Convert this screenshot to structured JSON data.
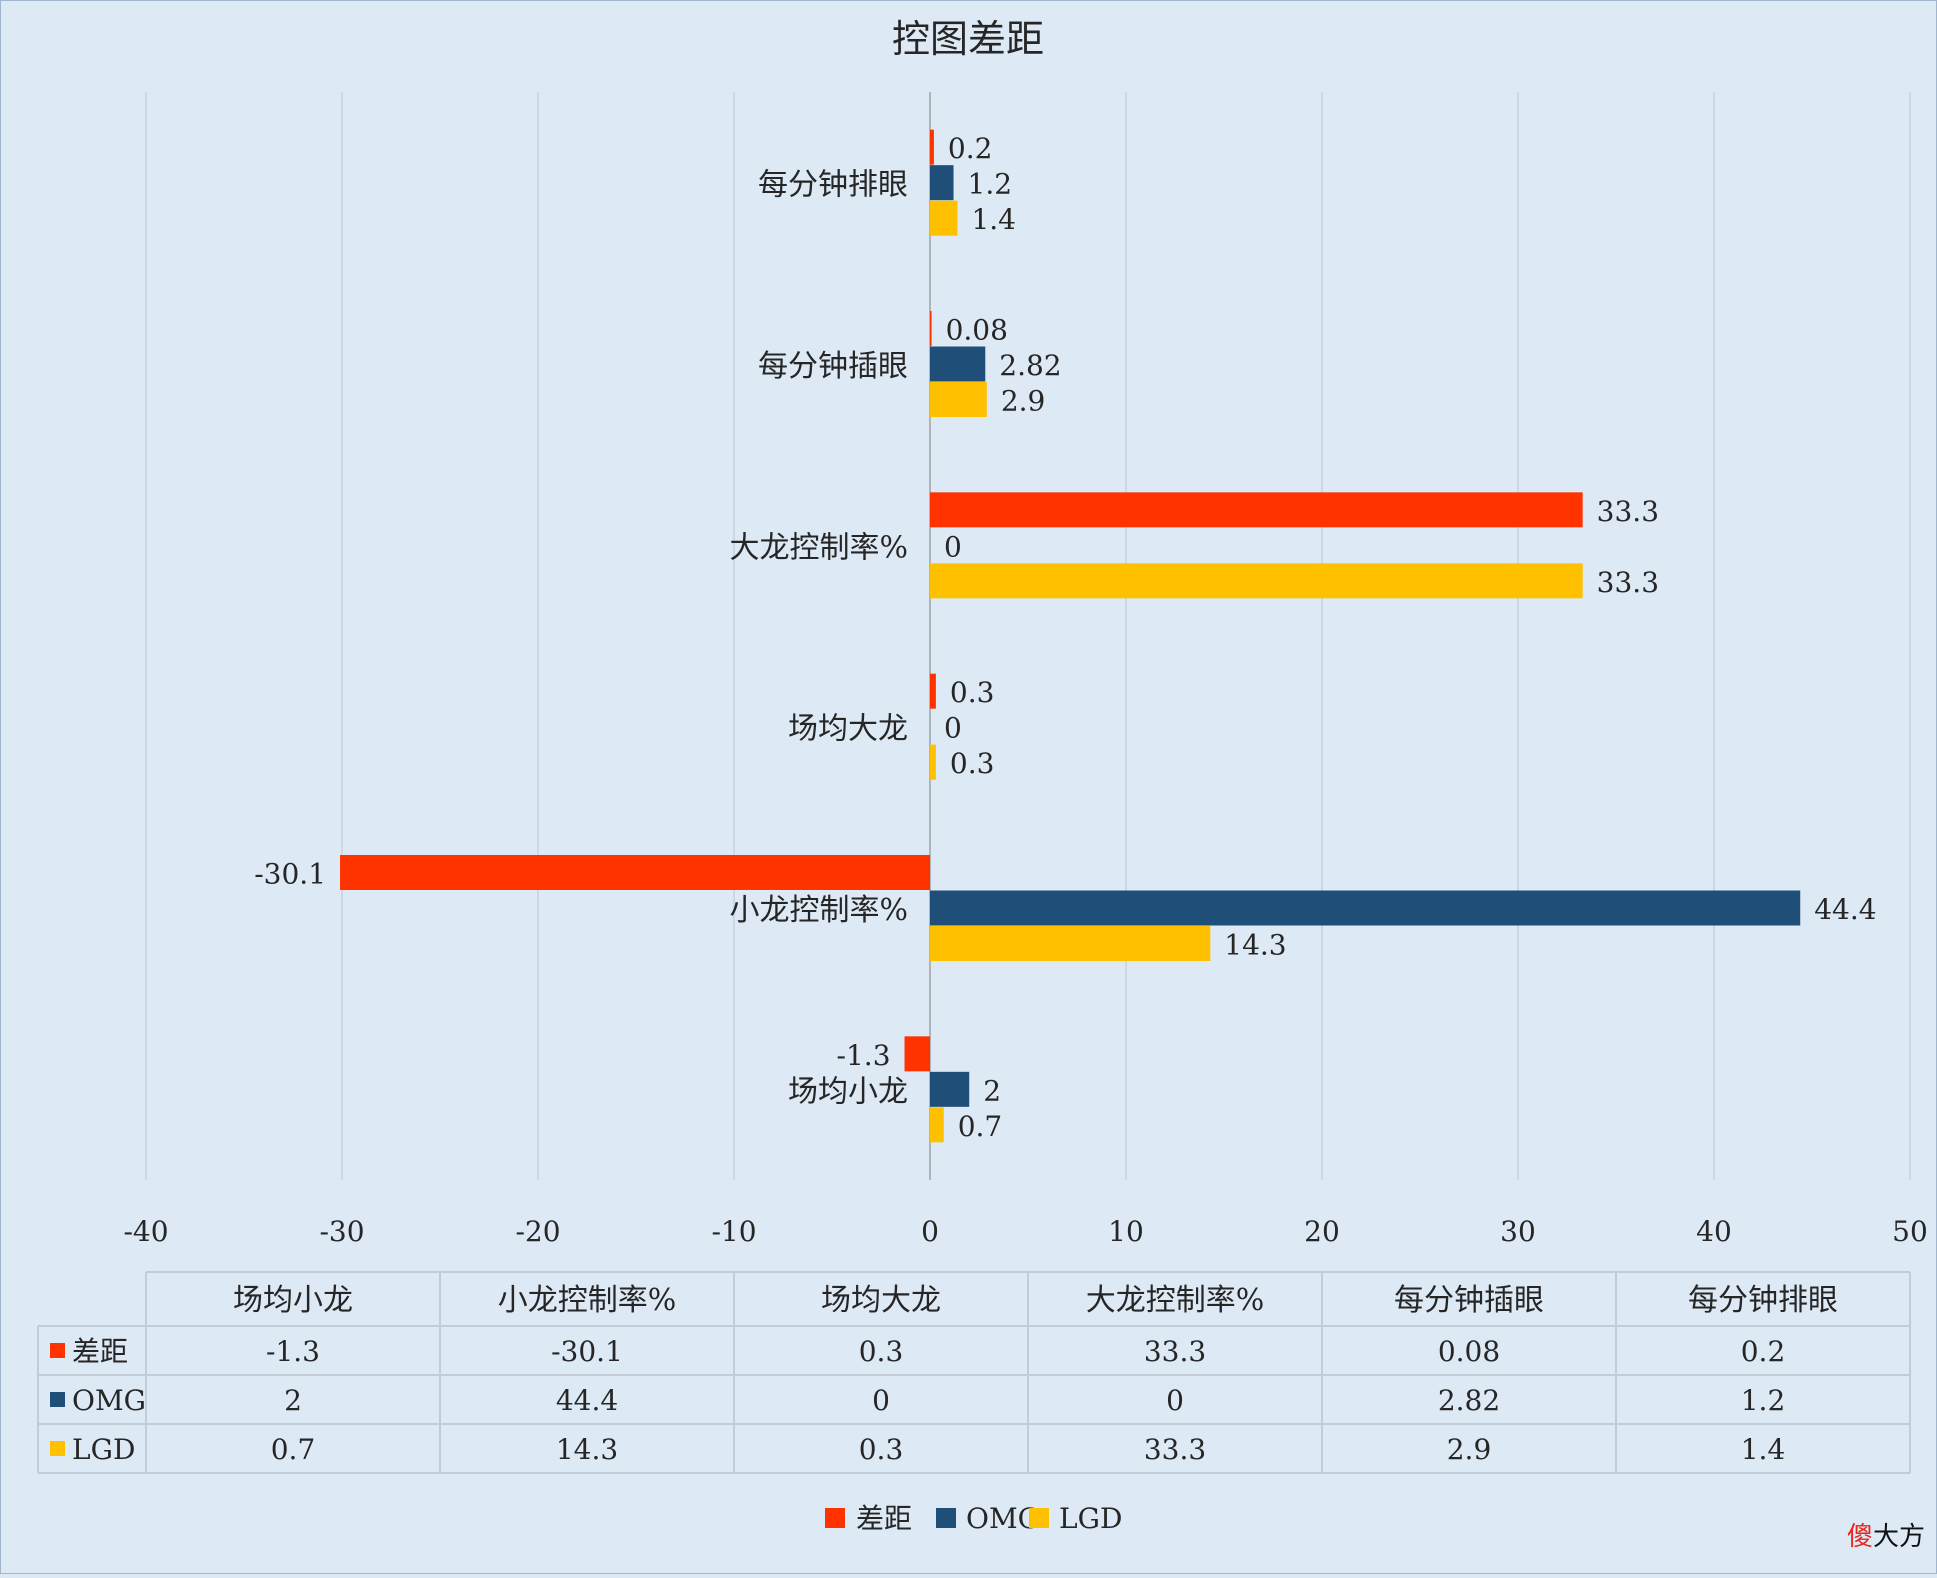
{
  "chart_data": {
    "type": "bar",
    "orientation": "horizontal",
    "title": "控图差距",
    "categories": [
      "场均小龙",
      "小龙控制率%",
      "场均大龙",
      "大龙控制率%",
      "每分钟插眼",
      "每分钟排眼"
    ],
    "series": [
      {
        "name": "差距",
        "color": "#ff3300",
        "values": [
          -1.3,
          -30.1,
          0.3,
          33.3,
          0.08,
          0.2
        ]
      },
      {
        "name": "OMG",
        "color": "#1f4e79",
        "values": [
          2,
          44.4,
          0,
          0,
          2.82,
          1.2
        ]
      },
      {
        "name": "LGD",
        "color": "#ffc000",
        "values": [
          0.7,
          14.3,
          0.3,
          33.3,
          2.9,
          1.4
        ]
      }
    ],
    "data_labels": [
      [
        "-1.3",
        "-30.1",
        "0.3",
        "33.3",
        "0.08",
        "0.2"
      ],
      [
        "2",
        "44.4",
        "0",
        "0",
        "2.82",
        "1.2"
      ],
      [
        "0.7",
        "14.3",
        "0.3",
        "33.3",
        "2.9",
        "1.4"
      ]
    ],
    "xlim": [
      -40,
      50
    ],
    "xticks": [
      -40,
      -30,
      -20,
      -10,
      0,
      10,
      20,
      30,
      40,
      50
    ],
    "xtick_labels": [
      "-40",
      "-30",
      "-20",
      "-10",
      "0",
      "10",
      "20",
      "30",
      "40",
      "50"
    ],
    "grid": "vertical",
    "legend": "bottom",
    "data_table": true
  },
  "watermark": {
    "text_a": "傻",
    "text_b": "大方"
  }
}
